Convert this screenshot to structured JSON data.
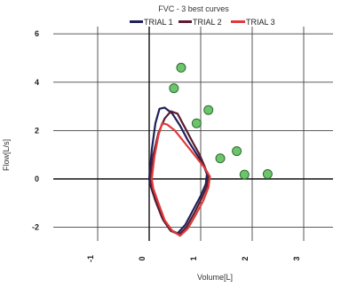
{
  "chart_data": {
    "type": "line",
    "title": "FVC - 3 best curves",
    "xlabel": "Volume[L]",
    "ylabel": "Flow[L/s]",
    "xlim": [
      -1.6,
      3.6
    ],
    "ylim": [
      -3.1,
      6.7
    ],
    "x_ticks": [
      "-1",
      "0",
      "1",
      "2",
      "3"
    ],
    "y_ticks": [
      "-2",
      "0",
      "2",
      "4",
      "6"
    ],
    "grid": true,
    "legend_position": "top",
    "series": [
      {
        "name": "TRIAL 1",
        "color": "#1f1f5c",
        "points": [
          [
            0.0,
            0.0
          ],
          [
            0.05,
            1.2
          ],
          [
            0.12,
            2.3
          ],
          [
            0.2,
            2.9
          ],
          [
            0.3,
            2.95
          ],
          [
            0.45,
            2.7
          ],
          [
            0.6,
            2.2
          ],
          [
            0.75,
            1.6
          ],
          [
            0.9,
            1.1
          ],
          [
            1.05,
            0.6
          ],
          [
            1.12,
            0.2
          ],
          [
            1.1,
            -0.2
          ],
          [
            1.0,
            -0.7
          ],
          [
            0.85,
            -1.3
          ],
          [
            0.7,
            -1.9
          ],
          [
            0.55,
            -2.25
          ],
          [
            0.4,
            -2.1
          ],
          [
            0.25,
            -1.6
          ],
          [
            0.12,
            -0.9
          ],
          [
            0.03,
            -0.3
          ],
          [
            0.0,
            0.0
          ]
        ]
      },
      {
        "name": "TRIAL 2",
        "color": "#5a1c2e",
        "points": [
          [
            0.02,
            0.0
          ],
          [
            0.08,
            1.0
          ],
          [
            0.18,
            1.9
          ],
          [
            0.3,
            2.5
          ],
          [
            0.42,
            2.8
          ],
          [
            0.55,
            2.7
          ],
          [
            0.7,
            2.1
          ],
          [
            0.85,
            1.5
          ],
          [
            0.98,
            1.0
          ],
          [
            1.08,
            0.5
          ],
          [
            1.15,
            0.1
          ],
          [
            1.12,
            -0.3
          ],
          [
            1.02,
            -0.8
          ],
          [
            0.88,
            -1.4
          ],
          [
            0.72,
            -2.0
          ],
          [
            0.58,
            -2.3
          ],
          [
            0.42,
            -2.15
          ],
          [
            0.27,
            -1.7
          ],
          [
            0.14,
            -1.0
          ],
          [
            0.05,
            -0.35
          ],
          [
            0.02,
            0.0
          ]
        ]
      },
      {
        "name": "TRIAL 3",
        "color": "#e03a3a",
        "points": [
          [
            0.05,
            0.0
          ],
          [
            0.1,
            0.9
          ],
          [
            0.18,
            1.8
          ],
          [
            0.25,
            2.3
          ],
          [
            0.35,
            2.25
          ],
          [
            0.5,
            2.0
          ],
          [
            0.65,
            1.6
          ],
          [
            0.8,
            1.2
          ],
          [
            0.95,
            0.8
          ],
          [
            1.08,
            0.45
          ],
          [
            1.18,
            0.1
          ],
          [
            1.15,
            -0.35
          ],
          [
            1.05,
            -0.9
          ],
          [
            0.9,
            -1.5
          ],
          [
            0.75,
            -2.05
          ],
          [
            0.6,
            -2.35
          ],
          [
            0.45,
            -2.15
          ],
          [
            0.3,
            -1.7
          ],
          [
            0.18,
            -1.0
          ],
          [
            0.08,
            -0.4
          ],
          [
            0.05,
            0.0
          ]
        ]
      }
    ],
    "predicted_points": {
      "color": "#6cc46c",
      "points": [
        [
          0.62,
          4.6
        ],
        [
          0.48,
          3.75
        ],
        [
          1.15,
          2.85
        ],
        [
          0.92,
          2.3
        ],
        [
          1.7,
          1.15
        ],
        [
          1.38,
          0.85
        ],
        [
          1.85,
          0.18
        ],
        [
          2.3,
          0.2
        ]
      ]
    }
  }
}
